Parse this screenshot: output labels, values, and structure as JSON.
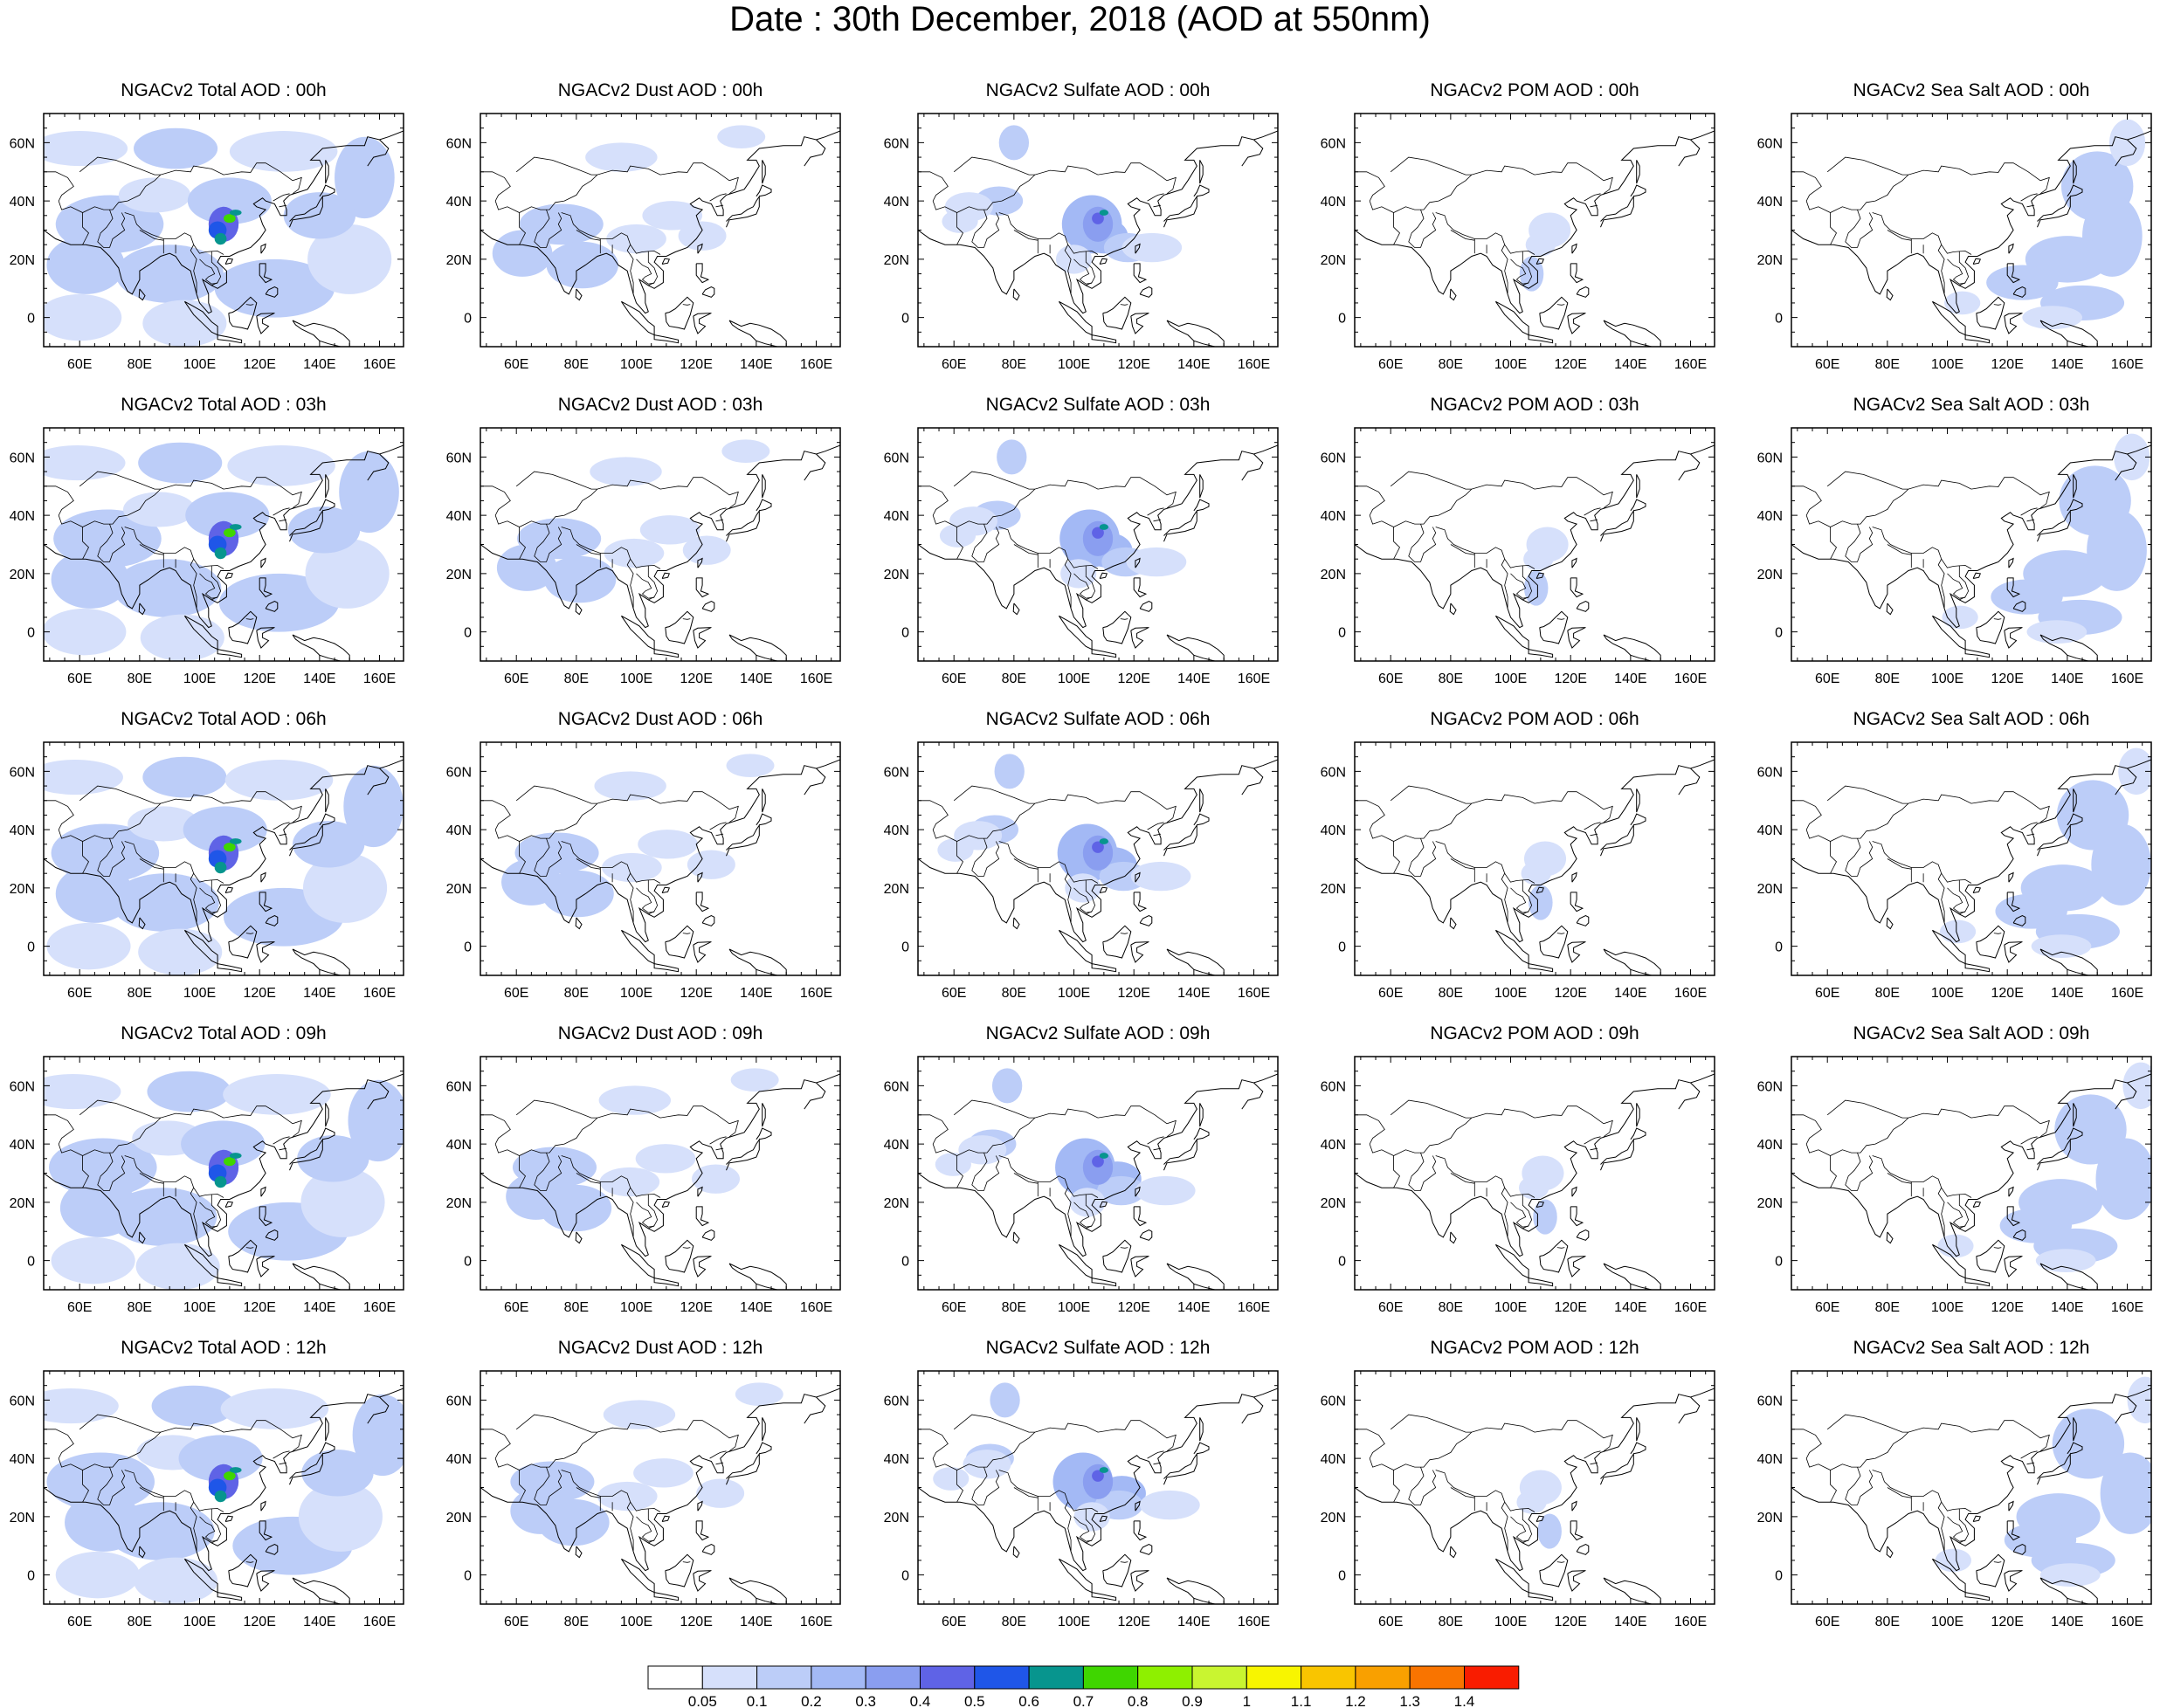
{
  "title": "Date : 30th December, 2018 (AOD at 550nm)",
  "panels": [
    [
      "NGACv2 Total AOD : 00h",
      "NGACv2 Dust AOD : 00h",
      "NGACv2 Sulfate AOD : 00h",
      "NGACv2 POM AOD : 00h",
      "NGACv2 Sea Salt AOD : 00h"
    ],
    [
      "NGACv2 Total AOD : 03h",
      "NGACv2 Dust AOD : 03h",
      "NGACv2 Sulfate AOD : 03h",
      "NGACv2 POM AOD : 03h",
      "NGACv2 Sea Salt AOD : 03h"
    ],
    [
      "NGACv2 Total AOD : 06h",
      "NGACv2 Dust AOD : 06h",
      "NGACv2 Sulfate AOD : 06h",
      "NGACv2 POM AOD : 06h",
      "NGACv2 Sea Salt AOD : 06h"
    ],
    [
      "NGACv2 Total AOD : 09h",
      "NGACv2 Dust AOD : 09h",
      "NGACv2 Sulfate AOD : 09h",
      "NGACv2 POM AOD : 09h",
      "NGACv2 Sea Salt  AOD : 09h"
    ],
    [
      "NGACv2 Total AOD  : 12h",
      "NGACv2 Dust AOD : 12h",
      "NGACv2 Sulfate AOD : 12h",
      "NGACv2 POM  AOD : 12h",
      "NGACv2 Sea Salt  AOD : 12h"
    ]
  ],
  "lon_labels": [
    "60E",
    "80E",
    "100E",
    "120E",
    "140E",
    "160E"
  ],
  "lat_labels": [
    "60N",
    "40N",
    "20N",
    "0"
  ],
  "colorbar": {
    "levels": [
      "0.05",
      "0.1",
      "0.2",
      "0.3",
      "0.4",
      "0.5",
      "0.6",
      "0.7",
      "0.8",
      "0.9",
      "1",
      "1.1",
      "1.2",
      "1.3",
      "1.4"
    ],
    "colors": [
      "#ffffff",
      "#d6e0fb",
      "#bccdf8",
      "#a3b9f5",
      "#8a9ef0",
      "#5f63e6",
      "#1f56e8",
      "#07958e",
      "#3fd600",
      "#8ef000",
      "#c9f530",
      "#f8f500",
      "#f9c500",
      "#f9a000",
      "#f97400",
      "#f91c00"
    ]
  }
}
